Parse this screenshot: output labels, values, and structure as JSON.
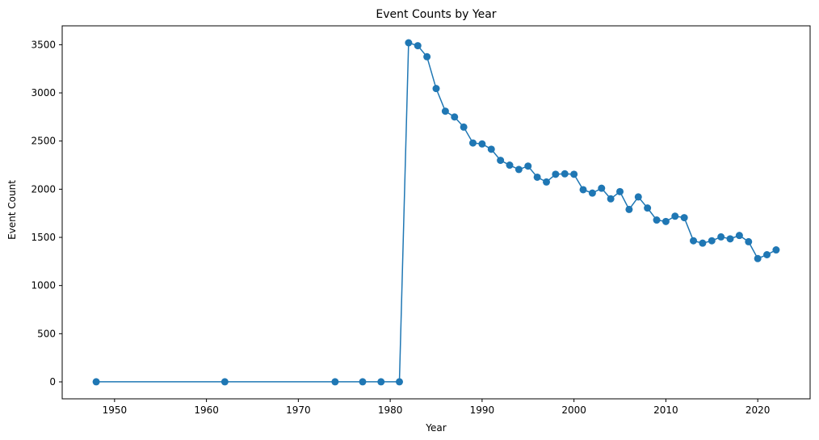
{
  "chart_data": {
    "type": "line",
    "title": "Event Counts by Year",
    "xlabel": "Year",
    "ylabel": "Event Count",
    "xlim": [
      1944.3,
      2025.7
    ],
    "ylim": [
      -176,
      3696
    ],
    "xticks": [
      1950,
      1960,
      1970,
      1980,
      1990,
      2000,
      2010,
      2020
    ],
    "yticks": [
      0,
      500,
      1000,
      1500,
      2000,
      2500,
      3000,
      3500
    ],
    "grid": false,
    "legend": "none",
    "marker": "circle",
    "color": "#1f77b4",
    "series": [
      {
        "x": [
          1948,
          1962,
          1974,
          1977,
          1979,
          1981,
          1982,
          1983,
          1984,
          1985,
          1986,
          1987,
          1988,
          1989,
          1990,
          1991,
          1992,
          1993,
          1994,
          1995,
          1996,
          1997,
          1998,
          1999,
          2000,
          2001,
          2002,
          2003,
          2004,
          2005,
          2006,
          2007,
          2008,
          2009,
          2010,
          2011,
          2012,
          2013,
          2014,
          2015,
          2016,
          2017,
          2018,
          2019,
          2020,
          2021,
          2022
        ],
        "y": [
          1,
          1,
          1,
          1,
          1,
          1,
          3520,
          3490,
          3375,
          3045,
          2810,
          2750,
          2645,
          2480,
          2470,
          2415,
          2300,
          2250,
          2205,
          2240,
          2125,
          2075,
          2155,
          2160,
          2155,
          1995,
          1960,
          2010,
          1900,
          1975,
          1790,
          1920,
          1805,
          1680,
          1665,
          1720,
          1705,
          1465,
          1440,
          1465,
          1505,
          1485,
          1520,
          1455,
          1280,
          1320,
          1370
        ]
      }
    ]
  }
}
